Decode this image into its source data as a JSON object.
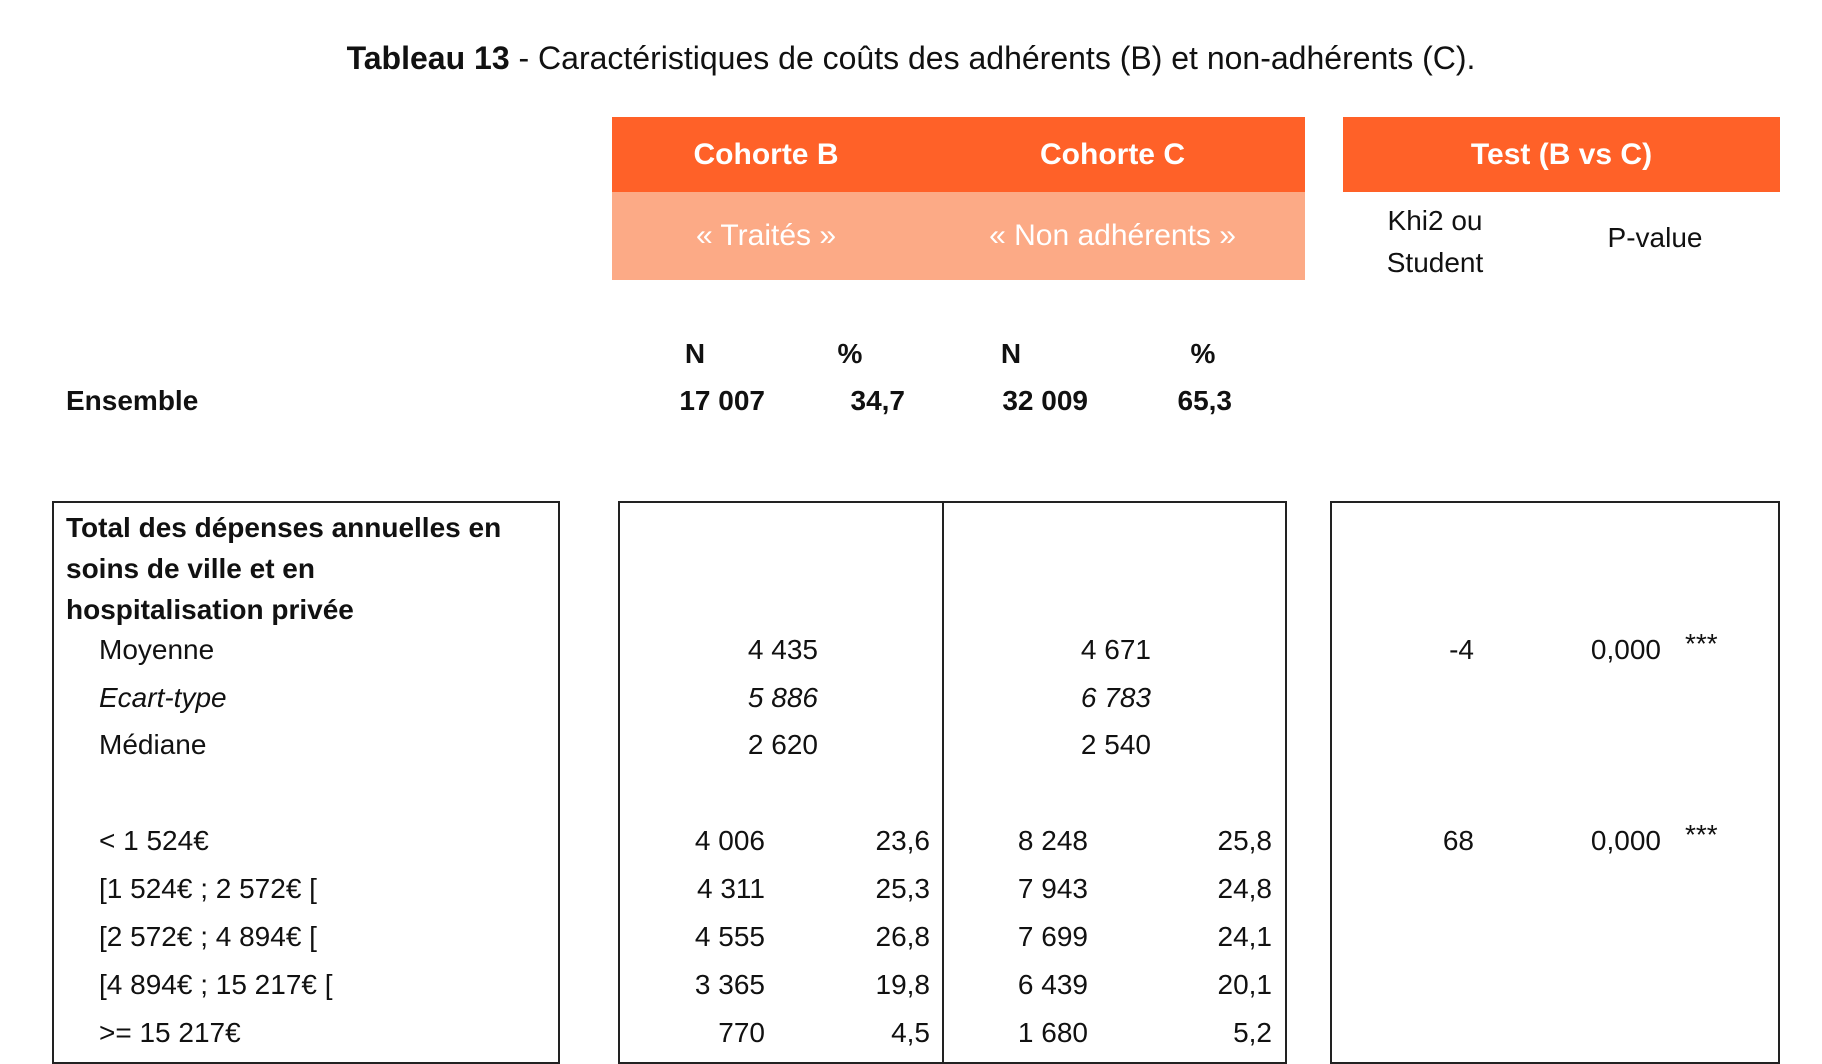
{
  "title": {
    "bold": "Tableau 13",
    "rest": " - Caractéristiques de coûts des adhérents (B) et non-adhérents (C)."
  },
  "header": {
    "cohort_b": "Cohorte B",
    "cohort_c": "Cohorte C",
    "test": "Test (B vs C)",
    "cohort_b_sub": "« Traités »",
    "cohort_c_sub": "« Non adhérents »",
    "test_col1_line1": "Khi2 ou",
    "test_col1_line2": "Student",
    "test_col2": "P-value"
  },
  "cols": {
    "n": "N",
    "pct": "%"
  },
  "ensemble": {
    "label": "Ensemble",
    "b_n": "17 007",
    "b_pct": "34,7",
    "c_n": "32 009",
    "c_pct": "65,3"
  },
  "section": {
    "title_line1": "Total des dépenses annuelles en",
    "title_line2": "soins de ville  et en",
    "title_line3": "hospitalisation privée",
    "stats": [
      {
        "label": "Moyenne",
        "b": "4 435",
        "c": "4 671",
        "test": "-4",
        "p": "0,000",
        "sig": "***"
      },
      {
        "label": "Ecart-type",
        "b": "5 886",
        "c": "6 783"
      },
      {
        "label": "Médiane",
        "b": "2 620",
        "c": "2 540"
      }
    ],
    "classes": [
      {
        "label": "< 1 524€",
        "b_n": "4 006",
        "b_pct": "23,6",
        "c_n": "8 248",
        "c_pct": "25,8",
        "test": "68",
        "p": "0,000",
        "sig": "***"
      },
      {
        "label": "[1 524€ ; 2 572€ [",
        "b_n": "4 311",
        "b_pct": "25,3",
        "c_n": "7 943",
        "c_pct": "24,8"
      },
      {
        "label": "[2 572€ ; 4 894€ [",
        "b_n": "4 555",
        "b_pct": "26,8",
        "c_n": "7 699",
        "c_pct": "24,1"
      },
      {
        "label": "[4 894€ ; 15 217€ [",
        "b_n": "3 365",
        "b_pct": "19,8",
        "c_n": "6 439",
        "c_pct": "20,1"
      },
      {
        "label": ">= 15 217€",
        "b_n": "770",
        "b_pct": "4,5",
        "c_n": "1 680",
        "c_pct": "5,2"
      }
    ]
  },
  "colors": {
    "header_dark": "#FF6128",
    "header_light": "#FCAA86"
  }
}
